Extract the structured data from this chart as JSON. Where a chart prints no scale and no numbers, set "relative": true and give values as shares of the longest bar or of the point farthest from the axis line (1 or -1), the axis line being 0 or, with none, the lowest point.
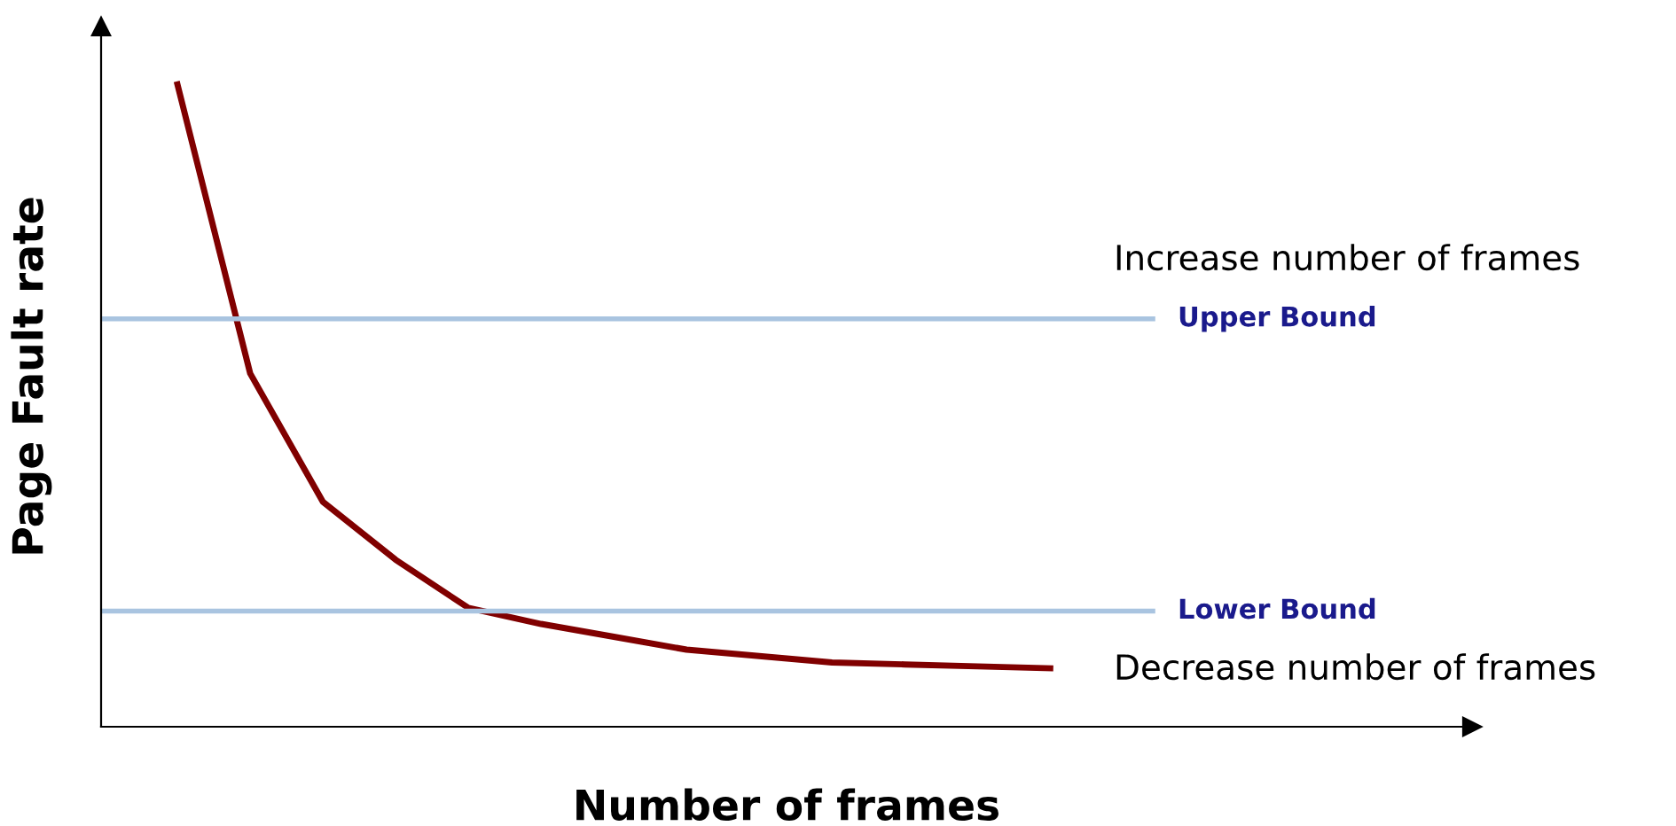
{
  "chart_data": {
    "type": "line",
    "relative": true,
    "xlabel": "Number of frames",
    "ylabel": "Page Fault rate",
    "categories": [
      null,
      null,
      null,
      null,
      null,
      null,
      null,
      null,
      null,
      null,
      null,
      null,
      null,
      null,
      null,
      null,
      null,
      null,
      null
    ],
    "series": [
      {
        "color": "#800000",
        "values": [
          null,
          1.0,
          0.55,
          0.35,
          0.26,
          0.185,
          0.16,
          0.14,
          0.12,
          0.11,
          0.1,
          0.097,
          0.094,
          0.091,
          null,
          null,
          null,
          null,
          null
        ]
      }
    ],
    "ref_lines": [
      {
        "axis": "y",
        "value": 0.635,
        "label": "Upper Bound",
        "color": "#a9c4e0"
      },
      {
        "axis": "y",
        "value": 0.18,
        "label": "Lower Bound",
        "color": "#a9c4e0"
      }
    ],
    "annotations": [
      "Increase number of frames",
      "Decrease number of frames"
    ],
    "legend": false,
    "marker": "none",
    "line_style": "solid",
    "tick_labels": false
  }
}
